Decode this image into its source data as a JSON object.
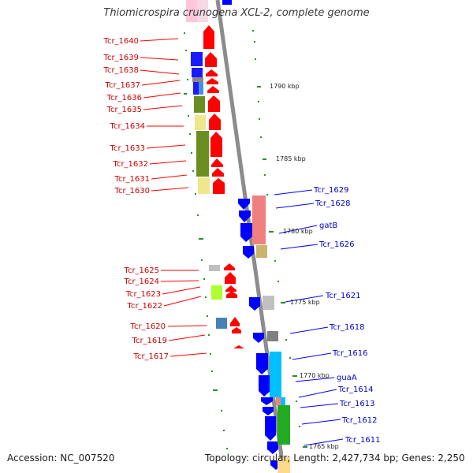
{
  "title": "Thiomicrospira crunogena XCL-2, complete genome",
  "accession": "Accession: NC_007520",
  "topology": "Topology: circular; Length: 2,427,734 bp; Genes: 2,250",
  "colors": {
    "forward": "#ff0000",
    "reverse": "#0000ff",
    "backbone": "#8c8c8c"
  },
  "kbp_labels": [
    "1790 kbp",
    "1785 kbp",
    "1780 kbp",
    "1775 kbp",
    "1770 kbp",
    "1765 kbp"
  ],
  "forward_genes": [
    "Tcr_1640",
    "Tcr_1639",
    "Tcr_1638",
    "Tcr_1637",
    "Tcr_1636",
    "Tcr_1635",
    "Tcr_1634",
    "Tcr_1633",
    "Tcr_1632",
    "Tcr_1631",
    "Tcr_1630",
    "Tcr_1625",
    "Tcr_1624",
    "Tcr_1623",
    "Tcr_1622",
    "Tcr_1620",
    "Tcr_1619",
    "Tcr_1617"
  ],
  "reverse_genes": [
    "Tcr_1629",
    "Tcr_1628",
    "gatB",
    "Tcr_1626",
    "Tcr_1621",
    "Tcr_1618",
    "Tcr_1616",
    "guaA",
    "Tcr_1614",
    "Tcr_1613",
    "Tcr_1612",
    "Tcr_1611"
  ]
}
